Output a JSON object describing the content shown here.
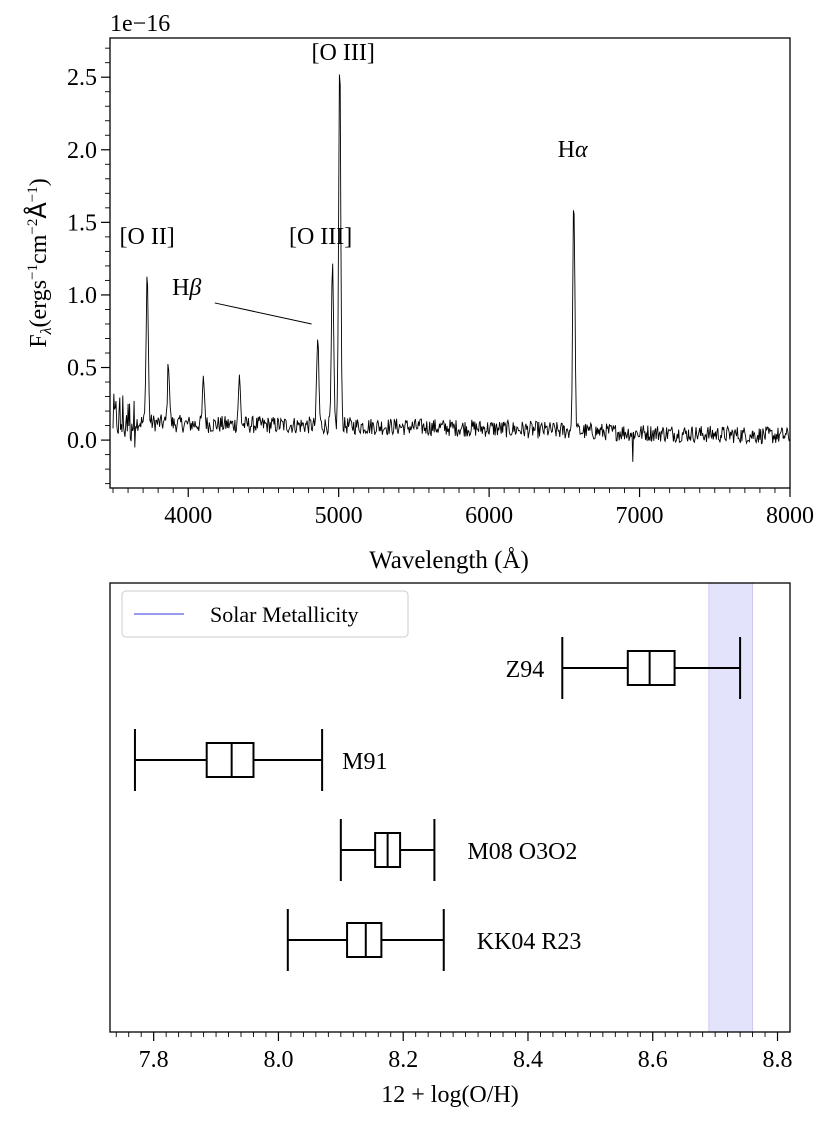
{
  "chart_data": [
    {
      "type": "line",
      "title": "",
      "xlabel": "Wavelength (Å)",
      "ylabel_parts": {
        "F": "F",
        "lambda": "λ",
        "unit_open": "(ergs",
        "exp_s": "−1",
        "cm": "cm",
        "exp_cm": "−2",
        "angstrom": "Å",
        "exp_a": "−1",
        "close": ")"
      },
      "offset_label": "1e−16",
      "xlim": [
        3480,
        8000
      ],
      "ylim": [
        -0.33,
        2.77
      ],
      "xticks": [
        4000,
        5000,
        6000,
        7000,
        8000
      ],
      "xtick_labels": [
        "4000",
        "5000",
        "6000",
        "7000",
        "8000"
      ],
      "yticks": [
        0.0,
        0.5,
        1.0,
        1.5,
        2.0,
        2.5
      ],
      "ytick_labels": [
        "0.0",
        "0.5",
        "1.0",
        "1.5",
        "2.0",
        "2.5"
      ],
      "series": [
        {
          "name": "spectrum",
          "noise_level": 0.06,
          "baseline": [
            [
              3500,
              0.13
            ],
            [
              4000,
              0.11
            ],
            [
              5000,
              0.1
            ],
            [
              6000,
              0.08
            ],
            [
              7000,
              0.05
            ],
            [
              8000,
              0.03
            ]
          ],
          "emission_lines": [
            {
              "name": "[O II]",
              "x": 3727,
              "peak": 1.14
            },
            {
              "x": 3869,
              "peak": 0.52
            },
            {
              "x": 4102,
              "peak": 0.41
            },
            {
              "x": 4340,
              "peak": 0.42
            },
            {
              "name": "Hβ",
              "x": 4861,
              "peak": 0.7
            },
            {
              "name": "[O III]",
              "x": 4959,
              "peak": 1.2
            },
            {
              "name": "[O III]",
              "x": 5007,
              "peak": 2.62
            },
            {
              "name": "Hα",
              "x": 6563,
              "peak": 1.71
            }
          ]
        }
      ],
      "annotations": [
        {
          "text_main": "[O II]",
          "x": 3727,
          "y": 1.35
        },
        {
          "text_main": "[O III]",
          "x": 4880,
          "y": 1.35
        },
        {
          "text_main": "[O III]",
          "x": 5030,
          "y": 2.62
        },
        {
          "text_main": "H",
          "text_greek": "α",
          "x": 6555,
          "y": 1.95
        },
        {
          "text_main": "H",
          "text_greek": "β",
          "x": 3990,
          "y": 1.0,
          "arrow_to": [
            4820,
            0.8
          ]
        }
      ]
    },
    {
      "type": "box",
      "title": "",
      "xlabel": "12 + log(O/H)",
      "ylabel": "",
      "xlim": [
        7.73,
        8.82
      ],
      "xticks": [
        7.8,
        8.0,
        8.2,
        8.4,
        8.6,
        8.8
      ],
      "xtick_labels": [
        "7.8",
        "8.0",
        "8.2",
        "8.4",
        "8.6",
        "8.8"
      ],
      "legend": {
        "position": "top-left",
        "entries": [
          "Solar Metallicity"
        ],
        "color": "#9999ee"
      },
      "solar_band": [
        8.69,
        8.76
      ],
      "series": [
        {
          "name": "Z94",
          "whisker_low": 8.455,
          "q1": 8.56,
          "median": 8.595,
          "q3": 8.635,
          "whisker_high": 8.74
        },
        {
          "name": "M91",
          "whisker_low": 7.77,
          "q1": 7.885,
          "median": 7.925,
          "q3": 7.96,
          "whisker_high": 8.07
        },
        {
          "name": "M08 O3O2",
          "whisker_low": 8.1,
          "q1": 8.155,
          "median": 8.175,
          "q3": 8.195,
          "whisker_high": 8.25
        },
        {
          "name": "KK04 R23",
          "whisker_low": 8.015,
          "q1": 8.11,
          "median": 8.14,
          "q3": 8.165,
          "whisker_high": 8.265
        }
      ]
    }
  ]
}
